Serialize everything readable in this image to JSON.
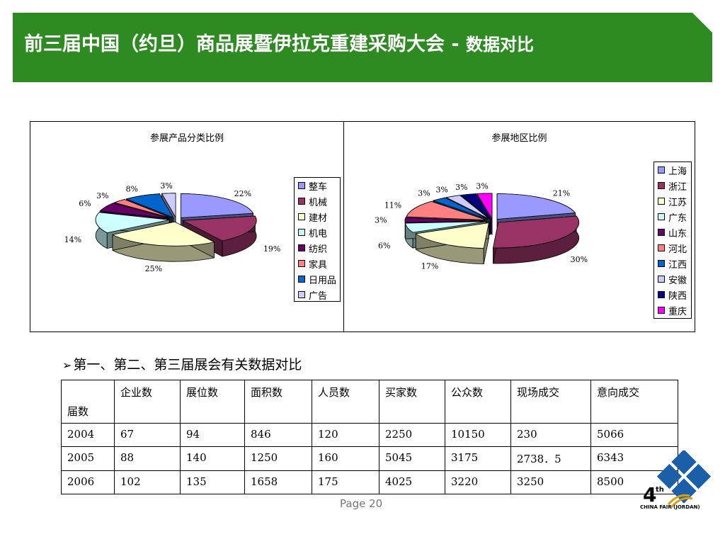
{
  "header": {
    "title": "前三届中国（约旦）商品展暨伊拉克重建采购大会 -",
    "subtitle": "数据对比",
    "color": "#2E8B22"
  },
  "chart_data": [
    {
      "type": "pie",
      "title": "参展产品分类比例",
      "categories": [
        "整车",
        "机械",
        "建材",
        "机电",
        "纺织",
        "家具",
        "日用品",
        "广告"
      ],
      "values": [
        22,
        19,
        25,
        14,
        6,
        3,
        8,
        3
      ],
      "labels": [
        "22%",
        "19%",
        "25%",
        "14%",
        "6%",
        "3%",
        "8%",
        "3%"
      ],
      "colors": [
        "#9999FF",
        "#993366",
        "#FFFFCC",
        "#CCFFFF",
        "#660066",
        "#FF8080",
        "#0066CC",
        "#CCCCFF"
      ],
      "legend_position": "right"
    },
    {
      "type": "pie",
      "title": "参展地区比例",
      "categories": [
        "上海",
        "浙江",
        "江苏",
        "广东",
        "山东",
        "河北",
        "江西",
        "安徽",
        "陕西",
        "重庆"
      ],
      "values": [
        21,
        30,
        17,
        6,
        3,
        11,
        3,
        3,
        3,
        3
      ],
      "labels": [
        "21%",
        "30%",
        "17%",
        "6%",
        "3%",
        "11%",
        "3%",
        "3%",
        "3%",
        "3%"
      ],
      "colors": [
        "#9999FF",
        "#993366",
        "#FFFFCC",
        "#CCFFFF",
        "#660066",
        "#FF8080",
        "#0066CC",
        "#CCCCFF",
        "#000080",
        "#FF00FF"
      ],
      "legend_position": "right"
    }
  ],
  "section": {
    "heading": "第一、第二、第三届展会有关数据对比"
  },
  "table": {
    "corner_label": "届数",
    "columns": [
      "企业数",
      "展位数",
      "面积数",
      "人员数",
      "买家数",
      "公众数",
      "现场成交",
      "意向成交"
    ],
    "rows": [
      [
        "2004",
        "67",
        "94",
        "846",
        "120",
        "2250",
        "10150",
        "230",
        "5066"
      ],
      [
        "2005",
        "88",
        "140",
        "1250",
        "160",
        "5045",
        "3175",
        "2738．5",
        "6343"
      ],
      [
        "2006",
        "102",
        "135",
        "1658",
        "175",
        "4025",
        "3220",
        "3250",
        "8500"
      ]
    ]
  },
  "footer": {
    "page": "Page 20"
  },
  "logo": {
    "number": "4",
    "suffix": "th",
    "text": "CHINA FAIR (JORDAN)"
  }
}
